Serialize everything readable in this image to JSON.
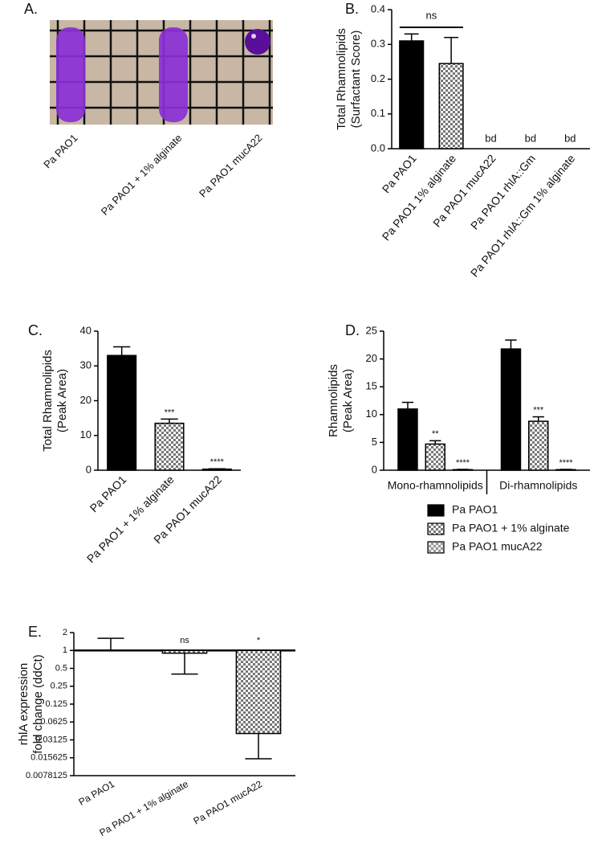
{
  "panel_a": {
    "label": "A.",
    "labels": [
      "Pa PAO1",
      "Pa PAO1 + 1% alginate",
      "Pa PAO1 mucA22"
    ]
  },
  "chart_data": [
    {
      "type": "bar",
      "panel": "B.",
      "ylabel": [
        "Total Rhamnolipids",
        "(Surfactant Score)"
      ],
      "categories": [
        "Pa PAO1",
        "Pa PAO1 1% alginate",
        "Pa PAO1 mucA22",
        "Pa PAO1 rhlA::Gm",
        "Pa PAO1 rhlA::Gm 1% alginate"
      ],
      "values": [
        0.31,
        0.245,
        null,
        null,
        null
      ],
      "errors": [
        0.02,
        0.075,
        null,
        null,
        null
      ],
      "value_labels": [
        null,
        null,
        "bd",
        "bd",
        "bd"
      ],
      "fills": [
        "black",
        "checkered",
        "black",
        "black",
        "black"
      ],
      "brackets": [
        {
          "label": "ns",
          "categories": [
            0,
            1
          ]
        }
      ],
      "ylim": [
        0,
        0.4
      ],
      "yticks": [
        {
          "value": 0,
          "label": "0.0"
        },
        0.1,
        0.2,
        0.3,
        0.4
      ]
    },
    {
      "type": "bar",
      "panel": "C.",
      "ylabel": [
        "Total Rhamnolipids",
        "(Peak Area)"
      ],
      "categories": [
        "Pa PAO1",
        "Pa PAO1 + 1% alginate",
        "Pa PAO1 mucA22"
      ],
      "values": [
        33,
        13.5,
        0.3
      ],
      "errors": [
        2.5,
        1.2,
        0.1
      ],
      "value_labels": [
        null,
        "***",
        "****"
      ],
      "fills": [
        "black",
        "checkered",
        "black"
      ],
      "ylim": [
        0,
        40
      ],
      "yticks": [
        0,
        10,
        20,
        30,
        40
      ]
    },
    {
      "type": "grouped_bar",
      "panel": "D.",
      "ylabel": [
        "Rhamnolipids",
        "(Peak Area)"
      ],
      "categories": [
        "Mono-rhamnolipids",
        "Di-rhamnolipids"
      ],
      "series": [
        {
          "name": "Pa PAO1",
          "fill": "black",
          "values": [
            11,
            21.8
          ],
          "errors": [
            1.2,
            1.6
          ],
          "value_labels": [
            null,
            null
          ]
        },
        {
          "name": "Pa PAO1 + 1% alginate",
          "fill": "checkered",
          "values": [
            4.7,
            8.8
          ],
          "errors": [
            0.6,
            0.8
          ],
          "value_labels": [
            "**",
            "***"
          ]
        },
        {
          "name": "Pa PAO1 mucA22",
          "fill": "checkered-light",
          "values": [
            0.1,
            0.1
          ],
          "errors": [
            0.05,
            0.05
          ],
          "value_labels": [
            "****",
            "****"
          ]
        }
      ],
      "ylim": [
        0,
        25
      ],
      "yticks": [
        0,
        5,
        10,
        15,
        20,
        25
      ]
    },
    {
      "type": "bar",
      "panel": "E.",
      "ylabel": [
        "rhlA expression",
        "fold change (ddCt)"
      ],
      "categories": [
        "Pa PAO1",
        "Pa PAO1 + 1% alginate",
        "Pa PAO1 mucA22"
      ],
      "values": [
        1,
        0.9,
        0.04
      ],
      "errors": [
        0.6,
        0.5,
        0.025
      ],
      "value_labels": [
        null,
        "ns",
        "*"
      ],
      "fills": [
        "black",
        "checkered",
        "checkered"
      ],
      "log_base": 2,
      "baseline": 1,
      "ylim": [
        0.0078125,
        2
      ],
      "yticks": [
        2,
        1,
        0.5,
        0.25,
        0.125,
        0.0625,
        0.03125,
        0.015625,
        0.0078125
      ]
    }
  ]
}
